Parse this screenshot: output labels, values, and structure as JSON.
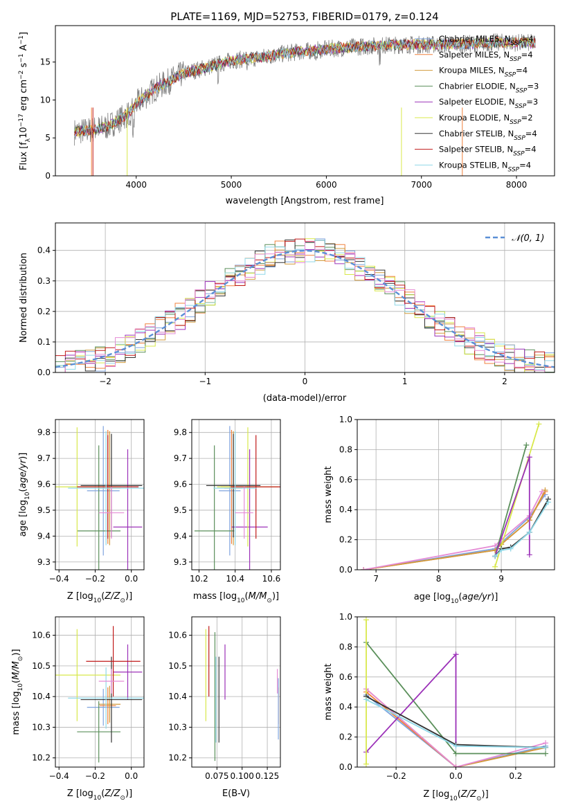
{
  "figure": {
    "title": "PLATE=1169, MJD=52753, FIBERID=0179, z=0.124"
  },
  "colors": {
    "Chabrier MILES": "#7fa3de",
    "Salpeter MILES": "#f0803c",
    "Kroupa MILES": "#d19a3c",
    "Chabrier ELODIE": "#5a8f5a",
    "Salpeter ELODIE": "#9b30b8",
    "Kroupa ELODIE": "#d8e84a",
    "Chabrier STELIB": "#333333",
    "Salpeter STELIB": "#c01818",
    "Kroupa STELIB": "#8fd8e8",
    "normal_curve": "#5b8fd6",
    "data_spectrum": "#808080",
    "pink": "#e58bd5"
  },
  "chart_data": [
    {
      "id": "spectrum",
      "type": "line",
      "xlabel": "wavelength [Angstrom, rest frame]",
      "ylabel": "Flux [f_λ10^-17 erg cm^-2 s^-1 A^-1]",
      "xlim": [
        3150,
        8400
      ],
      "ylim": [
        0,
        19.8
      ],
      "xticks": [
        4000,
        5000,
        6000,
        7000,
        8000
      ],
      "yticks": [
        0,
        5,
        10,
        15
      ],
      "legend_position": "top-right",
      "series": [
        {
          "name": "Chabrier MILES, N_SSP=4",
          "color": "#7fa3de"
        },
        {
          "name": "Salpeter MILES, N_SSP=4",
          "color": "#f0803c"
        },
        {
          "name": "Kroupa MILES, N_SSP=4",
          "color": "#d19a3c"
        },
        {
          "name": "Chabrier ELODIE, N_SSP=3",
          "color": "#5a8f5a"
        },
        {
          "name": "Salpeter ELODIE, N_SSP=3",
          "color": "#9b30b8"
        },
        {
          "name": "Kroupa ELODIE, N_SSP=2",
          "color": "#d8e84a"
        },
        {
          "name": "Chabrier STELIB, N_SSP=4",
          "color": "#333333"
        },
        {
          "name": "Salpeter STELIB, N_SSP=4",
          "color": "#c01818"
        },
        {
          "name": "Kroupa STELIB, N_SSP=4",
          "color": "#8fd8e8"
        }
      ],
      "continuum": {
        "x": [
          3350,
          3500,
          3700,
          3900,
          4000,
          4200,
          4500,
          4800,
          5000,
          5300,
          5600,
          6000,
          6300,
          6600,
          6900,
          7200,
          7500,
          7800,
          8200
        ],
        "y": [
          5.8,
          6.0,
          6.5,
          8.0,
          9.5,
          11.5,
          13.5,
          14.5,
          15.2,
          15.6,
          16.2,
          16.7,
          17.0,
          17.2,
          17.3,
          17.3,
          17.4,
          17.6,
          17.5
        ]
      }
    },
    {
      "id": "residuals",
      "type": "line",
      "xlabel": "(data-model)/error",
      "ylabel": "Normed distribution",
      "xlim": [
        -2.5,
        2.5
      ],
      "ylim": [
        0,
        0.49
      ],
      "xticks": [
        -2,
        -1,
        0,
        1,
        2
      ],
      "yticks": [
        0.0,
        0.1,
        0.2,
        0.3,
        0.4
      ],
      "grid": true,
      "legend_position": "top-right",
      "legend_label": "𝒩(0, 1)"
    },
    {
      "id": "age_vs_Z",
      "type": "scatter",
      "xlabel": "Z [log10(Z/Z⊙)]",
      "ylabel": "age [log10(age/yr)]",
      "xlim": [
        -0.42,
        0.07
      ],
      "ylim": [
        9.27,
        9.85
      ],
      "xticks": [
        -0.4,
        -0.2,
        0.0
      ],
      "yticks": [
        9.3,
        9.4,
        9.5,
        9.6,
        9.7,
        9.8
      ],
      "grid": true,
      "points": [
        {
          "model": "Chabrier MILES",
          "x": -0.155,
          "xerr": 0.09,
          "y": 9.575,
          "yerr": 0.25
        },
        {
          "model": "Salpeter MILES",
          "x": -0.13,
          "xerr": 0.045,
          "y": 9.59,
          "yerr": 0.22
        },
        {
          "model": "Kroupa MILES",
          "x": -0.12,
          "xerr": 0.06,
          "y": 9.585,
          "yerr": 0.22
        },
        {
          "model": "Chabrier ELODIE",
          "x": -0.18,
          "xerr": 0.12,
          "y": 9.42,
          "yerr": 0.33
        },
        {
          "model": "Salpeter ELODIE",
          "x": -0.02,
          "xerr": 0.08,
          "y": 9.435,
          "yerr": 0.3
        },
        {
          "model": "Kroupa ELODIE",
          "x": -0.3,
          "xerr": 0.24,
          "y": 9.59,
          "yerr": 0.23
        },
        {
          "model": "Chabrier STELIB",
          "x": -0.11,
          "xerr": 0.17,
          "y": 9.595,
          "yerr": 0.2
        },
        {
          "model": "Salpeter STELIB",
          "x": -0.13,
          "xerr": 0.17,
          "y": 9.59,
          "yerr": 0.2
        },
        {
          "model": "Kroupa STELIB",
          "x": -0.14,
          "xerr": 0.21,
          "y": 9.585,
          "yerr": 0.22
        },
        {
          "model": "pink",
          "x": -0.11,
          "xerr": 0.07,
          "y": 9.49,
          "yerr": 0.1
        }
      ]
    },
    {
      "id": "age_vs_mass",
      "type": "scatter",
      "xlabel": "mass [log10(M/M⊙)]",
      "xlim": [
        10.16,
        10.65
      ],
      "ylim": [
        9.27,
        9.85
      ],
      "xticks": [
        10.2,
        10.4,
        10.6
      ],
      "yticks": [
        9.3,
        9.4,
        9.5,
        9.6,
        9.7,
        9.8
      ],
      "grid": true,
      "points": [
        {
          "model": "Chabrier MILES",
          "x": 10.37,
          "xerr": 0.06,
          "y": 9.575,
          "yerr": 0.25
        },
        {
          "model": "Salpeter MILES",
          "x": 10.38,
          "xerr": 0.06,
          "y": 9.59,
          "yerr": 0.22
        },
        {
          "model": "Kroupa MILES",
          "x": 10.39,
          "xerr": 0.05,
          "y": 9.585,
          "yerr": 0.22
        },
        {
          "model": "Chabrier ELODIE",
          "x": 10.285,
          "xerr": 0.11,
          "y": 9.42,
          "yerr": 0.33
        },
        {
          "model": "Salpeter ELODIE",
          "x": 10.48,
          "xerr": 0.1,
          "y": 9.435,
          "yerr": 0.3
        },
        {
          "model": "Kroupa ELODIE",
          "x": 10.47,
          "xerr": 0.17,
          "y": 9.59,
          "yerr": 0.23
        },
        {
          "model": "Chabrier STELIB",
          "x": 10.39,
          "xerr": 0.15,
          "y": 9.595,
          "yerr": 0.2
        },
        {
          "model": "Salpeter STELIB",
          "x": 10.515,
          "xerr": 0.14,
          "y": 9.59,
          "yerr": 0.2
        },
        {
          "model": "Kroupa STELIB",
          "x": 10.4,
          "xerr": 0.12,
          "y": 9.585,
          "yerr": 0.22
        },
        {
          "model": "pink",
          "x": 10.45,
          "xerr": 0.05,
          "y": 9.49,
          "yerr": 0.1
        }
      ]
    },
    {
      "id": "massweight_vs_age",
      "type": "line",
      "xlabel": "age [log10(age/yr)]",
      "ylabel": "mass weight",
      "xlim": [
        6.7,
        9.85
      ],
      "ylim": [
        0,
        1.0
      ],
      "xticks": [
        7,
        8,
        9
      ],
      "yticks": [
        0.0,
        0.2,
        0.4,
        0.6,
        0.8,
        1.0
      ],
      "grid": true,
      "series": [
        {
          "name": "Chabrier MILES",
          "x": [
            6.8,
            8.9,
            9.0,
            9.45,
            9.7
          ],
          "y": [
            0.0,
            0.14,
            0.18,
            0.35,
            0.5
          ]
        },
        {
          "name": "Salpeter MILES",
          "x": [
            6.8,
            8.9,
            9.0,
            9.45,
            9.7
          ],
          "y": [
            0.0,
            0.13,
            0.17,
            0.33,
            0.52
          ]
        },
        {
          "name": "Kroupa MILES",
          "x": [
            6.8,
            8.9,
            9.0,
            9.45,
            9.7
          ],
          "y": [
            0.0,
            0.13,
            0.17,
            0.33,
            0.53
          ]
        },
        {
          "name": "pink",
          "x": [
            6.8,
            8.9,
            9.0,
            9.45,
            9.65
          ],
          "y": [
            0.0,
            0.16,
            0.2,
            0.36,
            0.52
          ]
        },
        {
          "name": "Chabrier ELODIE",
          "x": [
            8.9,
            9.4
          ],
          "y": [
            0.09,
            0.83
          ]
        },
        {
          "name": "Kroupa ELODIE",
          "x": [
            8.9,
            9.6
          ],
          "y": [
            0.02,
            0.97
          ]
        },
        {
          "name": "Salpeter ELODIE",
          "x": [
            8.9,
            9.45,
            9.45
          ],
          "y": [
            0.09,
            0.75,
            0.1
          ]
        },
        {
          "name": "Chabrier STELIB",
          "x": [
            8.9,
            9.0,
            9.15,
            9.45,
            9.75
          ],
          "y": [
            0.09,
            0.14,
            0.15,
            0.25,
            0.47
          ]
        },
        {
          "name": "Kroupa STELIB",
          "x": [
            8.9,
            9.0,
            9.15,
            9.45,
            9.75
          ],
          "y": [
            0.09,
            0.13,
            0.14,
            0.25,
            0.45
          ]
        }
      ]
    },
    {
      "id": "mass_vs_Z",
      "type": "scatter",
      "xlabel": "Z [log10(Z/Z⊙)]",
      "ylabel": "mass [log10(M/M⊙)]",
      "xlim": [
        -0.42,
        0.07
      ],
      "ylim": [
        10.17,
        10.66
      ],
      "xticks": [
        -0.4,
        -0.2,
        0.0
      ],
      "yticks": [
        10.2,
        10.3,
        10.4,
        10.5,
        10.6
      ],
      "grid": true,
      "points": [
        {
          "model": "Chabrier MILES",
          "x": -0.155,
          "xerr": 0.09,
          "y": 10.365,
          "yerr": 0.06
        },
        {
          "model": "Salpeter MILES",
          "x": -0.13,
          "xerr": 0.045,
          "y": 10.37,
          "yerr": 0.06
        },
        {
          "model": "Kroupa MILES",
          "x": -0.12,
          "xerr": 0.06,
          "y": 10.375,
          "yerr": 0.06
        },
        {
          "model": "Chabrier ELODIE",
          "x": -0.18,
          "xerr": 0.12,
          "y": 10.285,
          "yerr": 0.1
        },
        {
          "model": "Salpeter ELODIE",
          "x": -0.02,
          "xerr": 0.08,
          "y": 10.48,
          "yerr": 0.09
        },
        {
          "model": "Kroupa ELODIE",
          "x": -0.3,
          "xerr": 0.24,
          "y": 10.47,
          "yerr": 0.15
        },
        {
          "model": "Chabrier STELIB",
          "x": -0.11,
          "xerr": 0.17,
          "y": 10.39,
          "yerr": 0.14
        },
        {
          "model": "Salpeter STELIB",
          "x": -0.1,
          "xerr": 0.15,
          "y": 10.515,
          "yerr": 0.115
        },
        {
          "model": "Kroupa STELIB",
          "x": -0.14,
          "xerr": 0.21,
          "y": 10.395,
          "yerr": 0.1
        },
        {
          "model": "pink",
          "x": -0.11,
          "xerr": 0.07,
          "y": 10.45,
          "yerr": 0.04
        }
      ]
    },
    {
      "id": "mass_vs_EBV",
      "type": "scatter",
      "xlabel": "E(B-V)",
      "xlim": [
        0.05,
        0.138
      ],
      "ylim": [
        10.17,
        10.66
      ],
      "xticks": [
        0.075,
        0.1,
        0.125
      ],
      "xticklabels": [
        "0.075",
        "0.100",
        "0.125"
      ],
      "yticks": [
        10.2,
        10.3,
        10.4,
        10.5,
        10.6
      ],
      "grid": true,
      "points": [
        {
          "model": "Kroupa ELODIE",
          "x": 0.064,
          "y": 10.47,
          "yerr": 0.15
        },
        {
          "model": "Salpeter STELIB",
          "x": 0.067,
          "y": 10.515,
          "yerr": 0.115
        },
        {
          "model": "Chabrier ELODIE",
          "x": 0.073,
          "y": 10.4,
          "yerr": 0.21
        },
        {
          "model": "Kroupa STELIB",
          "x": 0.074,
          "y": 10.39,
          "yerr": 0.14
        },
        {
          "model": "Chabrier STELIB",
          "x": 0.077,
          "y": 10.39,
          "yerr": 0.14
        },
        {
          "model": "Salpeter ELODIE",
          "x": 0.083,
          "y": 10.48,
          "yerr": 0.09
        },
        {
          "model": "pink",
          "x": 0.135,
          "y": 10.45,
          "yerr": 0.04
        },
        {
          "model": "Salpeter MILES",
          "x": 0.136,
          "y": 10.37,
          "yerr": 0.06
        },
        {
          "model": "Chabrier MILES",
          "x": 0.136,
          "y": 10.36,
          "yerr": 0.1
        }
      ]
    },
    {
      "id": "massweight_vs_Z",
      "type": "line",
      "xlabel": "Z [log10(Z/Z⊙)]",
      "ylabel": "mass weight",
      "xlim": [
        -0.33,
        0.33
      ],
      "ylim": [
        0,
        1.0
      ],
      "xticks": [
        -0.2,
        0.0,
        0.2
      ],
      "yticks": [
        0.0,
        0.2,
        0.4,
        0.6,
        0.8,
        1.0
      ],
      "grid": true,
      "series": [
        {
          "name": "Chabrier MILES",
          "x": [
            -0.3,
            0.0,
            0.3
          ],
          "y": [
            0.48,
            0.0,
            0.14
          ]
        },
        {
          "name": "Salpeter MILES",
          "x": [
            -0.3,
            0.0,
            0.3
          ],
          "y": [
            0.5,
            0.0,
            0.13
          ]
        },
        {
          "name": "Kroupa MILES",
          "x": [
            -0.3,
            0.0,
            0.3
          ],
          "y": [
            0.52,
            0.0,
            0.13
          ]
        },
        {
          "name": "pink",
          "x": [
            -0.3,
            0.0,
            0.3
          ],
          "y": [
            0.52,
            0.0,
            0.16
          ]
        },
        {
          "name": "Chabrier ELODIE",
          "x": [
            -0.3,
            0.0,
            0.3
          ],
          "y": [
            0.83,
            0.09,
            0.09
          ]
        },
        {
          "name": "Salpeter ELODIE",
          "x": [
            -0.3,
            0.0,
            0.0
          ],
          "y": [
            0.1,
            0.75,
            0.15
          ]
        },
        {
          "name": "Kroupa ELODIE",
          "x": [
            -0.3,
            -0.3
          ],
          "y": [
            0.02,
            0.98
          ]
        },
        {
          "name": "Chabrier STELIB",
          "x": [
            -0.3,
            0.0,
            0.3
          ],
          "y": [
            0.47,
            0.15,
            0.13
          ]
        },
        {
          "name": "Kroupa STELIB",
          "x": [
            -0.3,
            0.0,
            0.3
          ],
          "y": [
            0.45,
            0.14,
            0.13
          ]
        }
      ]
    }
  ]
}
